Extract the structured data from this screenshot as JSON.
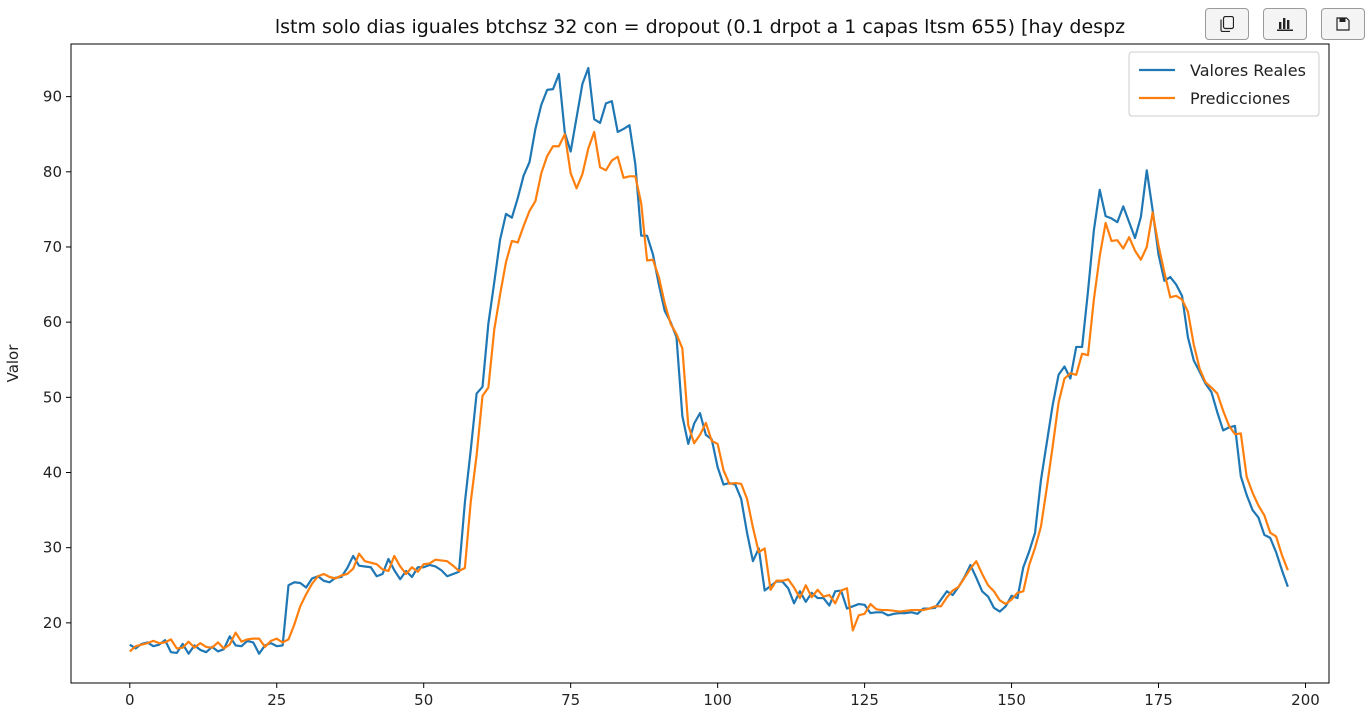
{
  "toolbar": {
    "buttons": [
      {
        "icon": "copy-icon"
      },
      {
        "icon": "bar-chart-icon"
      },
      {
        "icon": "save-icon"
      }
    ]
  },
  "chart_data": {
    "type": "line",
    "title": "lstm solo dias iguales btchsz 32 con = dropout (0.1 drpot a 1 capas ltsm 655) [hay despz",
    "xlabel": "",
    "ylabel": "Valor",
    "xlim": [
      -10,
      204
    ],
    "ylim": [
      12,
      97
    ],
    "xticks": [
      0,
      25,
      50,
      75,
      100,
      125,
      150,
      175,
      200
    ],
    "yticks": [
      20,
      30,
      40,
      50,
      60,
      70,
      80,
      90
    ],
    "grid": false,
    "legend_position": "top-right",
    "series": [
      {
        "name": "Valores Reales",
        "color": "#1f77b4",
        "values": [
          17.1,
          16.6,
          17.2,
          17.4,
          16.9,
          17.1,
          17.7,
          16.1,
          16.0,
          17.2,
          15.9,
          17.0,
          16.4,
          16.1,
          16.8,
          16.2,
          16.5,
          18.2,
          17.0,
          16.9,
          17.6,
          17.4,
          15.9,
          17.0,
          17.3,
          16.9,
          17.0,
          25.0,
          25.4,
          25.3,
          24.7,
          25.9,
          26.2,
          25.6,
          25.4,
          26.0,
          26.1,
          27.3,
          28.9,
          27.6,
          27.5,
          27.4,
          26.2,
          26.5,
          28.5,
          27.0,
          25.8,
          26.9,
          26.1,
          27.4,
          27.4,
          27.7,
          27.5,
          27.0,
          26.2,
          26.5,
          26.8,
          36.0,
          43.0,
          50.5,
          51.4,
          59.8,
          65.3,
          71.0,
          74.4,
          73.9,
          76.5,
          79.5,
          81.3,
          85.7,
          88.9,
          90.9,
          91.0,
          93.0,
          85.2,
          82.7,
          87.2,
          91.7,
          93.8,
          87.0,
          86.5,
          89.1,
          89.4,
          85.3,
          85.7,
          86.2,
          81.0,
          71.5,
          71.5,
          69.0,
          65.0,
          61.5,
          60.0,
          58.0,
          47.5,
          43.8,
          46.5,
          47.9,
          45.0,
          44.4,
          40.7,
          38.4,
          38.6,
          38.4,
          36.5,
          32.0,
          28.2,
          29.9,
          24.3,
          24.9,
          25.5,
          25.5,
          24.6,
          22.6,
          24.2,
          22.8,
          24.0,
          23.3,
          23.3,
          22.3,
          24.2,
          24.3,
          21.9,
          22.2,
          22.5,
          22.4,
          21.3,
          21.4,
          21.4,
          21.0,
          21.2,
          21.3,
          21.3,
          21.4,
          21.2,
          21.9,
          21.9,
          22.0,
          23.1,
          24.2,
          23.7,
          24.8,
          26.1,
          27.7,
          26.0,
          24.2,
          23.5,
          22.0,
          21.5,
          22.2,
          23.6,
          23.3,
          27.4,
          29.5,
          32.0,
          39.0,
          44.0,
          49.0,
          53.0,
          54.1,
          52.5,
          56.7,
          56.7,
          64.1,
          72.2,
          77.6,
          74.1,
          73.8,
          73.3,
          75.4,
          73.3,
          71.2,
          74.0,
          80.2,
          74.9,
          69.0,
          65.5,
          66.0,
          65.0,
          63.5,
          58.0,
          54.9,
          53.4,
          51.8,
          50.7,
          48.0,
          45.6,
          46.0,
          46.2,
          39.5,
          37.0,
          35.0,
          34.0,
          31.7,
          31.3,
          29.4,
          27.0,
          24.8
        ]
      },
      {
        "name": "Predicciones",
        "color": "#ff7f0e",
        "values": [
          16.2,
          16.9,
          17.1,
          17.3,
          17.6,
          17.3,
          17.4,
          17.8,
          16.6,
          16.7,
          17.5,
          16.7,
          17.3,
          16.8,
          16.7,
          17.4,
          16.6,
          17.1,
          18.7,
          17.5,
          17.8,
          17.9,
          17.9,
          16.8,
          17.6,
          17.9,
          17.4,
          17.8,
          19.8,
          22.2,
          23.8,
          25.2,
          26.2,
          26.5,
          26.1,
          25.9,
          26.3,
          26.5,
          27.2,
          29.2,
          28.2,
          28.0,
          27.8,
          27.1,
          26.9,
          28.9,
          27.5,
          26.5,
          27.4,
          26.8,
          27.8,
          27.9,
          28.4,
          28.3,
          28.2,
          27.6,
          26.9,
          27.3,
          36.1,
          42.3,
          50.2,
          51.3,
          59.0,
          63.7,
          68.0,
          70.8,
          70.6,
          72.8,
          74.8,
          76.1,
          79.8,
          82.1,
          83.4,
          83.4,
          85.0,
          79.8,
          77.8,
          79.7,
          83.1,
          85.3,
          80.6,
          80.2,
          81.5,
          82.0,
          79.2,
          79.4,
          79.4,
          75.8,
          68.2,
          68.3,
          66.0,
          62.5,
          59.8,
          58.4,
          56.5,
          46.3,
          43.9,
          45.0,
          46.6,
          44.2,
          43.8,
          40.3,
          38.5,
          38.6,
          38.5,
          36.5,
          32.7,
          29.4,
          29.9,
          24.4,
          25.6,
          25.6,
          25.8,
          24.7,
          23.3,
          25.0,
          23.4,
          24.4,
          23.5,
          23.7,
          22.6,
          24.3,
          24.6,
          19.0,
          21.0,
          21.2,
          22.5,
          21.8,
          21.7,
          21.7,
          21.6,
          21.5,
          21.6,
          21.7,
          21.7,
          21.7,
          21.9,
          22.2,
          22.2,
          23.4,
          24.3,
          24.8,
          26.0,
          27.2,
          28.2,
          26.5,
          25.0,
          24.2,
          23.0,
          22.5,
          23.1,
          24.0,
          24.2,
          27.7,
          30.0,
          32.8,
          38.0,
          43.5,
          49.3,
          52.5,
          53.2,
          53.0,
          55.8,
          55.6,
          63.0,
          68.8,
          73.2,
          70.8,
          70.9,
          69.8,
          71.3,
          69.5,
          68.3,
          70.0,
          74.6,
          70.2,
          66.6,
          63.3,
          63.5,
          63.0,
          61.4,
          57.0,
          53.8,
          52.0,
          51.3,
          50.5,
          48.2,
          46.2,
          45.1,
          45.2,
          39.4,
          37.3,
          35.6,
          34.3,
          32.0,
          31.5,
          29.0,
          27.0
        ]
      }
    ]
  }
}
